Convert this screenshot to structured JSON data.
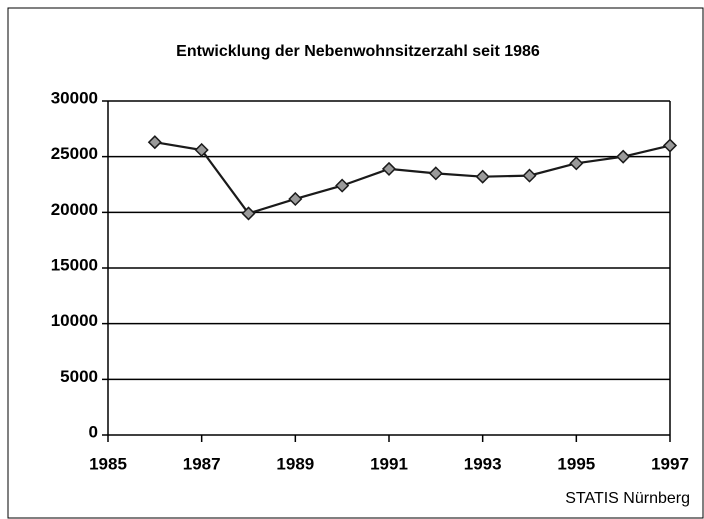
{
  "chart_data": {
    "type": "line",
    "title": "Entwicklung der Nebenwohnsitzerzahl seit 1986",
    "source": "STATIS Nürnberg",
    "x": [
      1986,
      1987,
      1988,
      1989,
      1990,
      1991,
      1992,
      1993,
      1994,
      1995,
      1996,
      1997
    ],
    "series": [
      {
        "name": "Nebenwohnsitzer",
        "color": "#1a1a1a",
        "values": [
          26300,
          25600,
          19900,
          21200,
          22400,
          23900,
          23500,
          23200,
          23300,
          24400,
          25000,
          26000
        ]
      }
    ],
    "xlim": [
      1985,
      1997
    ],
    "xticks": [
      1985,
      1987,
      1989,
      1991,
      1993,
      1995,
      1997
    ],
    "ylim": [
      0,
      30000
    ],
    "yticks": [
      0,
      5000,
      10000,
      15000,
      20000,
      25000,
      30000
    ],
    "grid": true,
    "legend": false
  }
}
